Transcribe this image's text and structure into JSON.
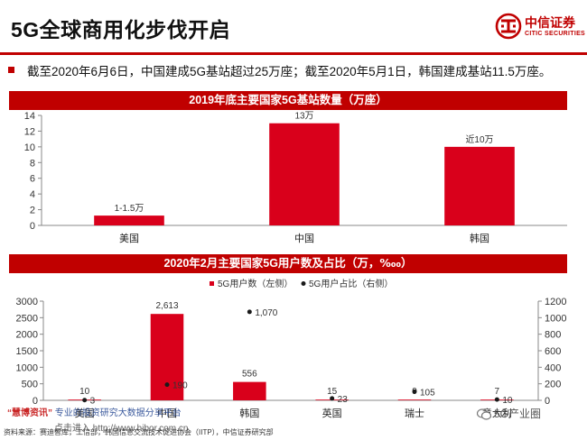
{
  "page": {
    "title": "5G全球商用化步伐开启",
    "headline": "截至2020年6月6日，中国建成5G基站超过25万座；截至2020年5月1日，韩国建成基站11.5万座。",
    "footer": "资料来源：赛迪智库，工信部，韩国信息交流技术促进协会（IITP），中信证券研究部",
    "accent_color": "#c00000"
  },
  "logo": {
    "name_cn": "中信证券",
    "name_en": "CITIC SECURITIES"
  },
  "watermark": {
    "brand": "“慧博资讯”",
    "text": "专业的投资研究大数据分享平台",
    "link": "点击进入 http://www.hibor.com.cn",
    "wechat": "5G产业圈"
  },
  "chart_data": [
    {
      "type": "bar",
      "title": "2019年底主要国家5G基站数量（万座）",
      "categories": [
        "美国",
        "中国",
        "韩国"
      ],
      "values": [
        1.25,
        13,
        10
      ],
      "data_labels": [
        "1-1.5万",
        "13万",
        "近10万"
      ],
      "ylim": [
        0,
        14
      ],
      "yticks": [
        0,
        2,
        4,
        6,
        8,
        10,
        12,
        14
      ],
      "color": "#d9001b",
      "grid": false
    },
    {
      "type": "bar",
      "title": "2020年2月主要国家5G用户数及占比（万，‱）",
      "categories": [
        "美国",
        "中国",
        "韩国",
        "英国",
        "瑞士",
        "意大利"
      ],
      "series": [
        {
          "name": "5G用户数（左侧）",
          "type": "bar",
          "axis": "left",
          "values": [
            10,
            2613,
            556,
            15,
            9,
            7
          ],
          "labels": [
            "10",
            "2,613",
            "556",
            "15",
            "9",
            "7"
          ],
          "color": "#d9001b"
        },
        {
          "name": "5G用户占比（右侧）",
          "type": "scatter",
          "axis": "right",
          "values": [
            3,
            190,
            1070,
            23,
            105,
            10
          ],
          "labels": [
            "3",
            "190",
            "1,070",
            "23",
            "105",
            "10"
          ],
          "color": "#1a1a1a"
        }
      ],
      "ylim_left": [
        0,
        3000
      ],
      "yticks_left": [
        0,
        500,
        1000,
        1500,
        2000,
        2500,
        3000
      ],
      "ylim_right": [
        0,
        1200
      ],
      "yticks_right": [
        0,
        200,
        400,
        600,
        800,
        1000,
        1200
      ],
      "legend": "top-center"
    }
  ]
}
